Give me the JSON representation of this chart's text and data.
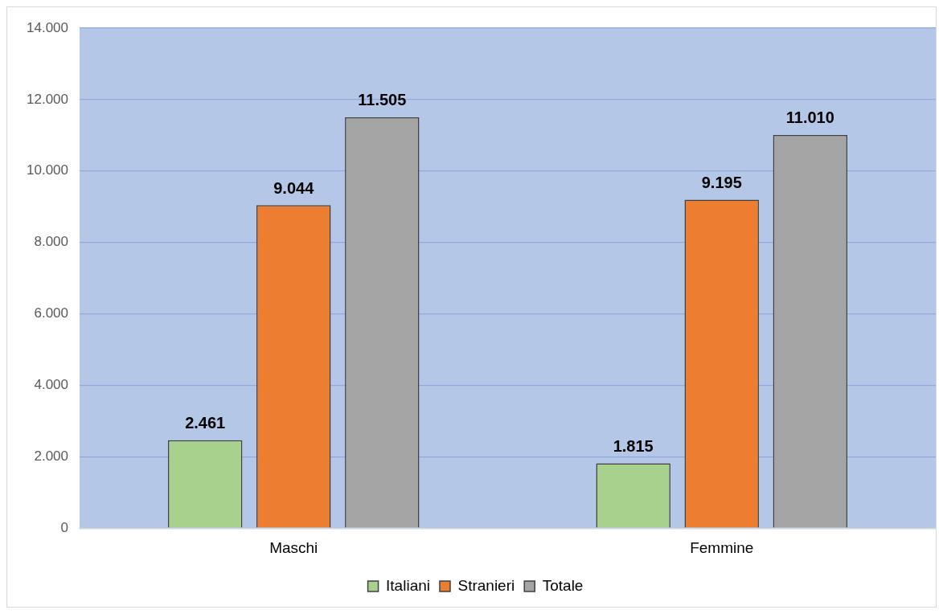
{
  "chart_data": {
    "type": "bar",
    "categories": [
      "Maschi",
      "Femmine"
    ],
    "series": [
      {
        "name": "Italiani",
        "color": "#a9d18e",
        "values": [
          2461,
          1815
        ],
        "value_labels": [
          "2.461",
          "1.815"
        ]
      },
      {
        "name": "Stranieri",
        "color": "#ed7d31",
        "values": [
          9044,
          9195
        ],
        "value_labels": [
          "9.044",
          "9.195"
        ]
      },
      {
        "name": "Totale",
        "color": "#a5a5a5",
        "values": [
          11505,
          11010
        ],
        "value_labels": [
          "11.505",
          "11.010"
        ]
      }
    ],
    "ylim": [
      0,
      14000
    ],
    "yticks": [
      {
        "value": 0,
        "label": "0"
      },
      {
        "value": 2000,
        "label": "2.000"
      },
      {
        "value": 4000,
        "label": "4.000"
      },
      {
        "value": 6000,
        "label": "6.000"
      },
      {
        "value": 8000,
        "label": "8.000"
      },
      {
        "value": 10000,
        "label": "10.000"
      },
      {
        "value": 12000,
        "label": "12.000"
      },
      {
        "value": 14000,
        "label": "14.000"
      }
    ],
    "grid": "y",
    "legend": "bottom"
  }
}
